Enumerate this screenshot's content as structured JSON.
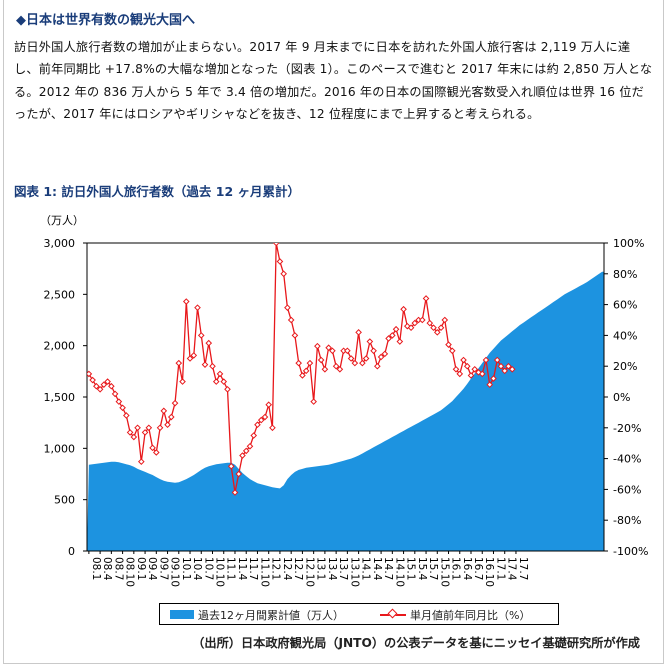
{
  "heading": "◆日本は世界有数の観光大国へ",
  "paragraph": "訪日外国人旅行者数の増加が止まらない。2017 年 9 月末までに日本を訪れた外国人旅行客は 2,119 万人に達し、前年同期比 +17.8%の大幅な増加となった（図表 1）。このペースで進むと 2017 年末には約 2,850 万人となる。2012 年の 836 万人から 5 年で 3.4 倍の増加だ。2016 年の日本の国際観光客数受入れ順位は世界 16 位だったが、2017 年にはロシアやギリシャなどを抜き、12 位程度にまで上昇すると考えられる。",
  "source": "（出所）日本政府観光局（JNTO）の公表データを基にニッセイ基礎研究所が作成",
  "colors": {
    "area": "#1d93e0",
    "line": "#e8181b",
    "title": "#1a3d7a"
  },
  "chart_data": {
    "type": "area+line",
    "title": "図表 1: 訪日外国人旅行者数（過去 12 ヶ月累計）",
    "y_left_unit": "（万人）",
    "y_left_range": [
      0,
      3000
    ],
    "y_left_ticks": [
      "0",
      "500",
      "1,000",
      "1,500",
      "2,000",
      "2,500",
      "3,000"
    ],
    "y_right_range": [
      -100,
      100
    ],
    "y_right_ticks": [
      "-100%",
      "-80%",
      "-60%",
      "-40%",
      "-20%",
      "0%",
      "20%",
      "40%",
      "60%",
      "80%",
      "100%"
    ],
    "x_tick_labels": [
      "08.1",
      "08.4",
      "08.7",
      "08.10",
      "09.1",
      "09.4",
      "09.7",
      "09.10",
      "10.1",
      "10.4",
      "10.7",
      "10.10",
      "11.1",
      "11.4",
      "11.7",
      "11.10",
      "12.1",
      "12.4",
      "12.7",
      "12.10",
      "13.1",
      "13.4",
      "13.7",
      "13.10",
      "14.1",
      "14.4",
      "14.7",
      "14.10",
      "15.1",
      "15.4",
      "15.7",
      "15.10",
      "16.1",
      "16.4",
      "16.7",
      "16.10",
      "17.1",
      "17.4",
      "17.7"
    ],
    "legend": [
      "過去12ヶ月間累計値（万人）",
      "単月値前年同月比（%）"
    ],
    "series": [
      {
        "name": "過去12ヶ月間累計値（万人）",
        "axis": "left",
        "values": [
          840,
          845,
          850,
          855,
          860,
          865,
          870,
          870,
          865,
          855,
          845,
          835,
          820,
          800,
          785,
          770,
          755,
          740,
          720,
          700,
          685,
          675,
          670,
          665,
          670,
          685,
          700,
          720,
          740,
          765,
          790,
          810,
          825,
          835,
          845,
          850,
          855,
          860,
          860,
          840,
          800,
          760,
          730,
          700,
          680,
          660,
          650,
          640,
          630,
          620,
          615,
          610,
          640,
          700,
          740,
          770,
          790,
          800,
          810,
          815,
          820,
          825,
          830,
          835,
          840,
          850,
          860,
          870,
          880,
          890,
          900,
          915,
          930,
          950,
          970,
          990,
          1010,
          1030,
          1050,
          1070,
          1090,
          1110,
          1130,
          1150,
          1170,
          1190,
          1210,
          1230,
          1250,
          1270,
          1290,
          1310,
          1330,
          1350,
          1370,
          1400,
          1430,
          1460,
          1500,
          1540,
          1580,
          1630,
          1680,
          1730,
          1780,
          1830,
          1880,
          1930,
          1970,
          2010,
          2050,
          2080,
          2110,
          2140,
          2170,
          2200,
          2225,
          2250,
          2275,
          2300,
          2325,
          2350,
          2375,
          2400,
          2425,
          2450,
          2475,
          2500,
          2520,
          2540,
          2560,
          2580,
          2600,
          2620,
          2645,
          2670,
          2695,
          2720
        ]
      },
      {
        "name": "単月値前年同月比（%）",
        "axis": "right",
        "values": [
          15,
          11,
          7,
          5,
          8,
          10,
          7,
          2,
          -3,
          -7,
          -12,
          -23,
          -26,
          -20,
          -42,
          -23,
          -20,
          -33,
          -36,
          -20,
          -9,
          -18,
          -13,
          -4,
          22,
          10,
          62,
          25,
          27,
          58,
          40,
          21,
          35,
          20,
          10,
          15,
          10,
          5,
          -45,
          -62,
          -50,
          -38,
          -35,
          -32,
          -25,
          -18,
          -15,
          -13,
          -5,
          -20,
          100,
          88,
          80,
          58,
          50,
          40,
          22,
          14,
          17,
          22,
          -3,
          33,
          24,
          18,
          32,
          30,
          20,
          18,
          30,
          30,
          25,
          22,
          42,
          22,
          25,
          36,
          30,
          20,
          26,
          28,
          38,
          40,
          44,
          36,
          57,
          46,
          45,
          48,
          50,
          50,
          64,
          48,
          45,
          42,
          45,
          50,
          34,
          30,
          18,
          15,
          24,
          20,
          14,
          18,
          16,
          15,
          24,
          8,
          12,
          24,
          20,
          17,
          20,
          18
        ]
      }
    ]
  }
}
